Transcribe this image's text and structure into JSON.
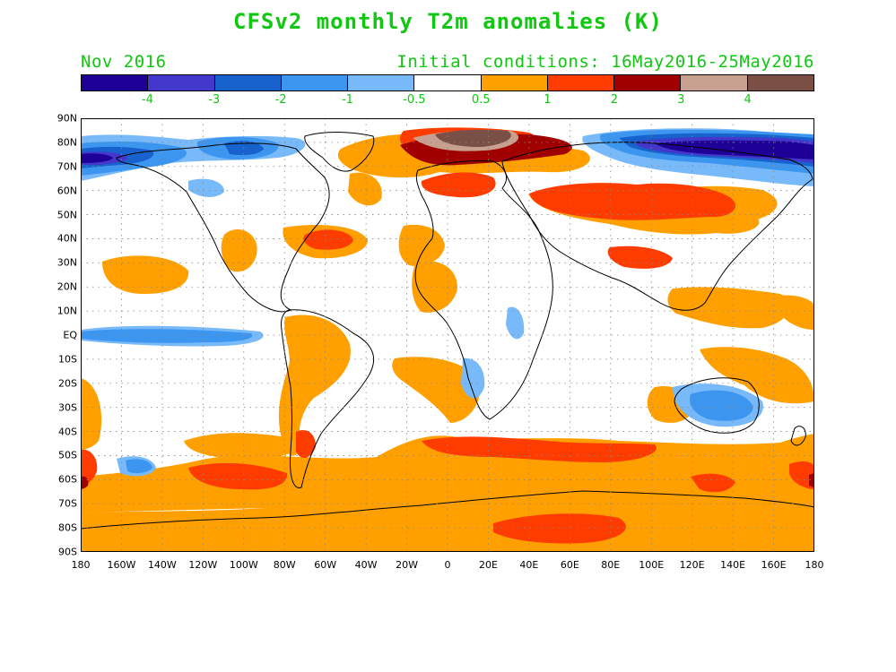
{
  "title": "CFSv2 monthly T2m anomalies (K)",
  "subtitle_left": "Nov 2016",
  "subtitle_right": "Initial conditions: 16May2016-25May2016",
  "colorbar": {
    "colors": [
      "#1e0096",
      "#4438cc",
      "#1762cc",
      "#3c96f0",
      "#78b9fa",
      "#ffffff",
      "#ffa000",
      "#ff3c00",
      "#a00000",
      "#c8a090",
      "#7a5046"
    ],
    "labels": [
      "-4",
      "-3",
      "-2",
      "-1",
      "-0.5",
      "0.5",
      "1",
      "2",
      "3",
      "4"
    ]
  },
  "lat_labels": [
    "90N",
    "80N",
    "70N",
    "60N",
    "50N",
    "40N",
    "30N",
    "20N",
    "10N",
    "EQ",
    "10S",
    "20S",
    "30S",
    "40S",
    "50S",
    "60S",
    "70S",
    "80S",
    "90S"
  ],
  "lon_labels": [
    "180",
    "160W",
    "140W",
    "120W",
    "100W",
    "80W",
    "60W",
    "40W",
    "20W",
    "0",
    "20E",
    "40E",
    "60E",
    "80E",
    "100E",
    "120E",
    "140E",
    "160E",
    "180"
  ],
  "anomaly_regions": [
    {
      "name": "arctic-warm-core",
      "level": ">4",
      "color": "#7a5046"
    },
    {
      "name": "eurasian-arctic-warm",
      "level": "2-3",
      "color": "#a00000"
    },
    {
      "name": "siberia-warm",
      "level": "1-2",
      "color": "#ff3c00"
    },
    {
      "name": "southern-ocean-warm",
      "level": "1-2",
      "color": "#ff3c00"
    },
    {
      "name": "east-siberian-sea-cold",
      "level": "<-4",
      "color": "#1e0096"
    },
    {
      "name": "australia-cold",
      "level": "-1 to -2",
      "color": "#3c96f0"
    },
    {
      "name": "equatorial-pacific-cold",
      "level": "-0.5 to -2",
      "color": "#3c96f0"
    }
  ]
}
